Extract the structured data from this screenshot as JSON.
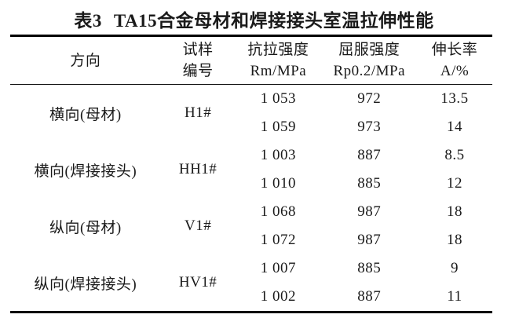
{
  "title": {
    "label": "表3",
    "caption": "TA15合金母材和焊接接头室温拉伸性能"
  },
  "columns": [
    {
      "line1": "方向",
      "line2": ""
    },
    {
      "line1": "试样",
      "line2": "编号"
    },
    {
      "line1": "抗拉强度",
      "line2": "Rm/MPa"
    },
    {
      "line1": "屈服强度",
      "line2": "Rp0.2/MPa"
    },
    {
      "line1": "伸长率",
      "line2": "A/%"
    }
  ],
  "groups": [
    {
      "direction": "横向(母材)",
      "specimen": "H1#",
      "rows": [
        [
          "1 053",
          "972",
          "13.5"
        ],
        [
          "1 059",
          "973",
          "14"
        ]
      ]
    },
    {
      "direction": "横向(焊接接头)",
      "specimen": "HH1#",
      "rows": [
        [
          "1 003",
          "887",
          "8.5"
        ],
        [
          "1 010",
          "885",
          "12"
        ]
      ]
    },
    {
      "direction": "纵向(母材)",
      "specimen": "V1#",
      "rows": [
        [
          "1 068",
          "987",
          "18"
        ],
        [
          "1 072",
          "987",
          "18"
        ]
      ]
    },
    {
      "direction": "纵向(焊接接头)",
      "specimen": "HV1#",
      "rows": [
        [
          "1 007",
          "885",
          "9"
        ],
        [
          "1 002",
          "887",
          "11"
        ]
      ]
    }
  ],
  "colors": {
    "text": "#1a1a1a",
    "rule": "#000000",
    "background": "#ffffff"
  }
}
